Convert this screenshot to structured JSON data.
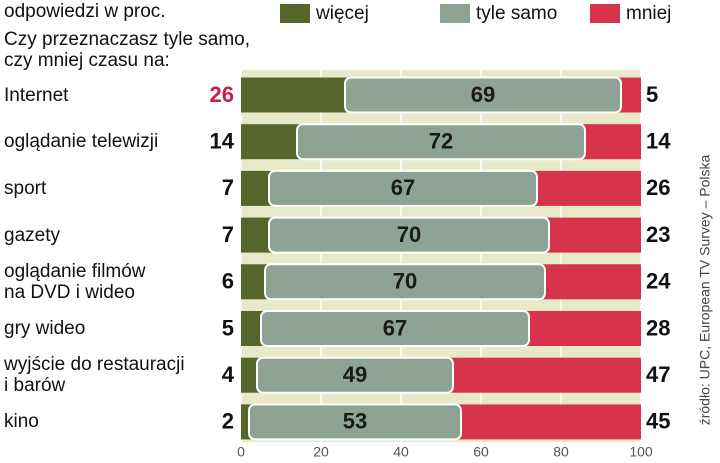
{
  "chart_data": {
    "type": "stacked_bar_horizontal",
    "subtitle": "odpowiedzi w proc.",
    "title": "Czy przeznaczasz tyle samo,\nczy mniej czasu na:",
    "source": "źródło: UPC, European TV Survey – Polska",
    "categories": [
      "Internet",
      "oglądanie telewizji",
      "sport",
      "gazety",
      "oglądanie filmów\nna DVD i wideo",
      "gry wideo",
      "wyjście do restauracji\ni barów",
      "kino"
    ],
    "series": [
      {
        "name": "więcej",
        "color": "#56662a",
        "values": [
          26,
          14,
          7,
          7,
          6,
          5,
          4,
          2
        ]
      },
      {
        "name": "tyle samo",
        "color": "#8ea394",
        "values": [
          69,
          72,
          67,
          70,
          70,
          67,
          49,
          53
        ]
      },
      {
        "name": "mniej",
        "color": "#d8334c",
        "values": [
          5,
          14,
          26,
          23,
          24,
          28,
          47,
          45
        ]
      }
    ],
    "highlight": {
      "index": 0,
      "color": "#c62049"
    },
    "xlim": [
      0,
      100
    ],
    "xticks": [
      0,
      20,
      40,
      60,
      80,
      100
    ],
    "grid": true
  }
}
